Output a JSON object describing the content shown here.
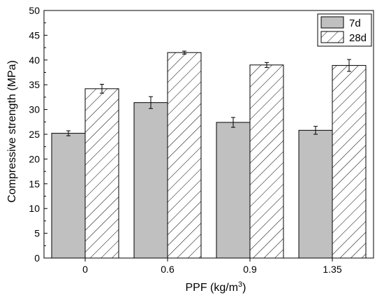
{
  "chart_data": {
    "type": "bar",
    "categories": [
      "0",
      "0.6",
      "0.9",
      "1.35"
    ],
    "series": [
      {
        "name": "7d",
        "values": [
          25.2,
          31.4,
          27.4,
          25.8
        ],
        "errors": [
          0.5,
          1.2,
          1.0,
          0.8
        ],
        "color": "#c0c0c0",
        "pattern": "solid"
      },
      {
        "name": "28d",
        "values": [
          34.2,
          41.5,
          39.0,
          38.9
        ],
        "errors": [
          0.9,
          0.3,
          0.5,
          1.2
        ],
        "color": "#ffffff",
        "pattern": "diagonal-hatch"
      }
    ],
    "xlabel_main": "PPF (kg/m",
    "xlabel_sup": "3",
    "xlabel_end": ")",
    "ylabel": "Compressive strength (MPa)",
    "ylim": [
      0,
      50
    ],
    "yticks": [
      0,
      5,
      10,
      15,
      20,
      25,
      30,
      35,
      40,
      45,
      50
    ],
    "grid": false,
    "legend_position": "top-right"
  }
}
